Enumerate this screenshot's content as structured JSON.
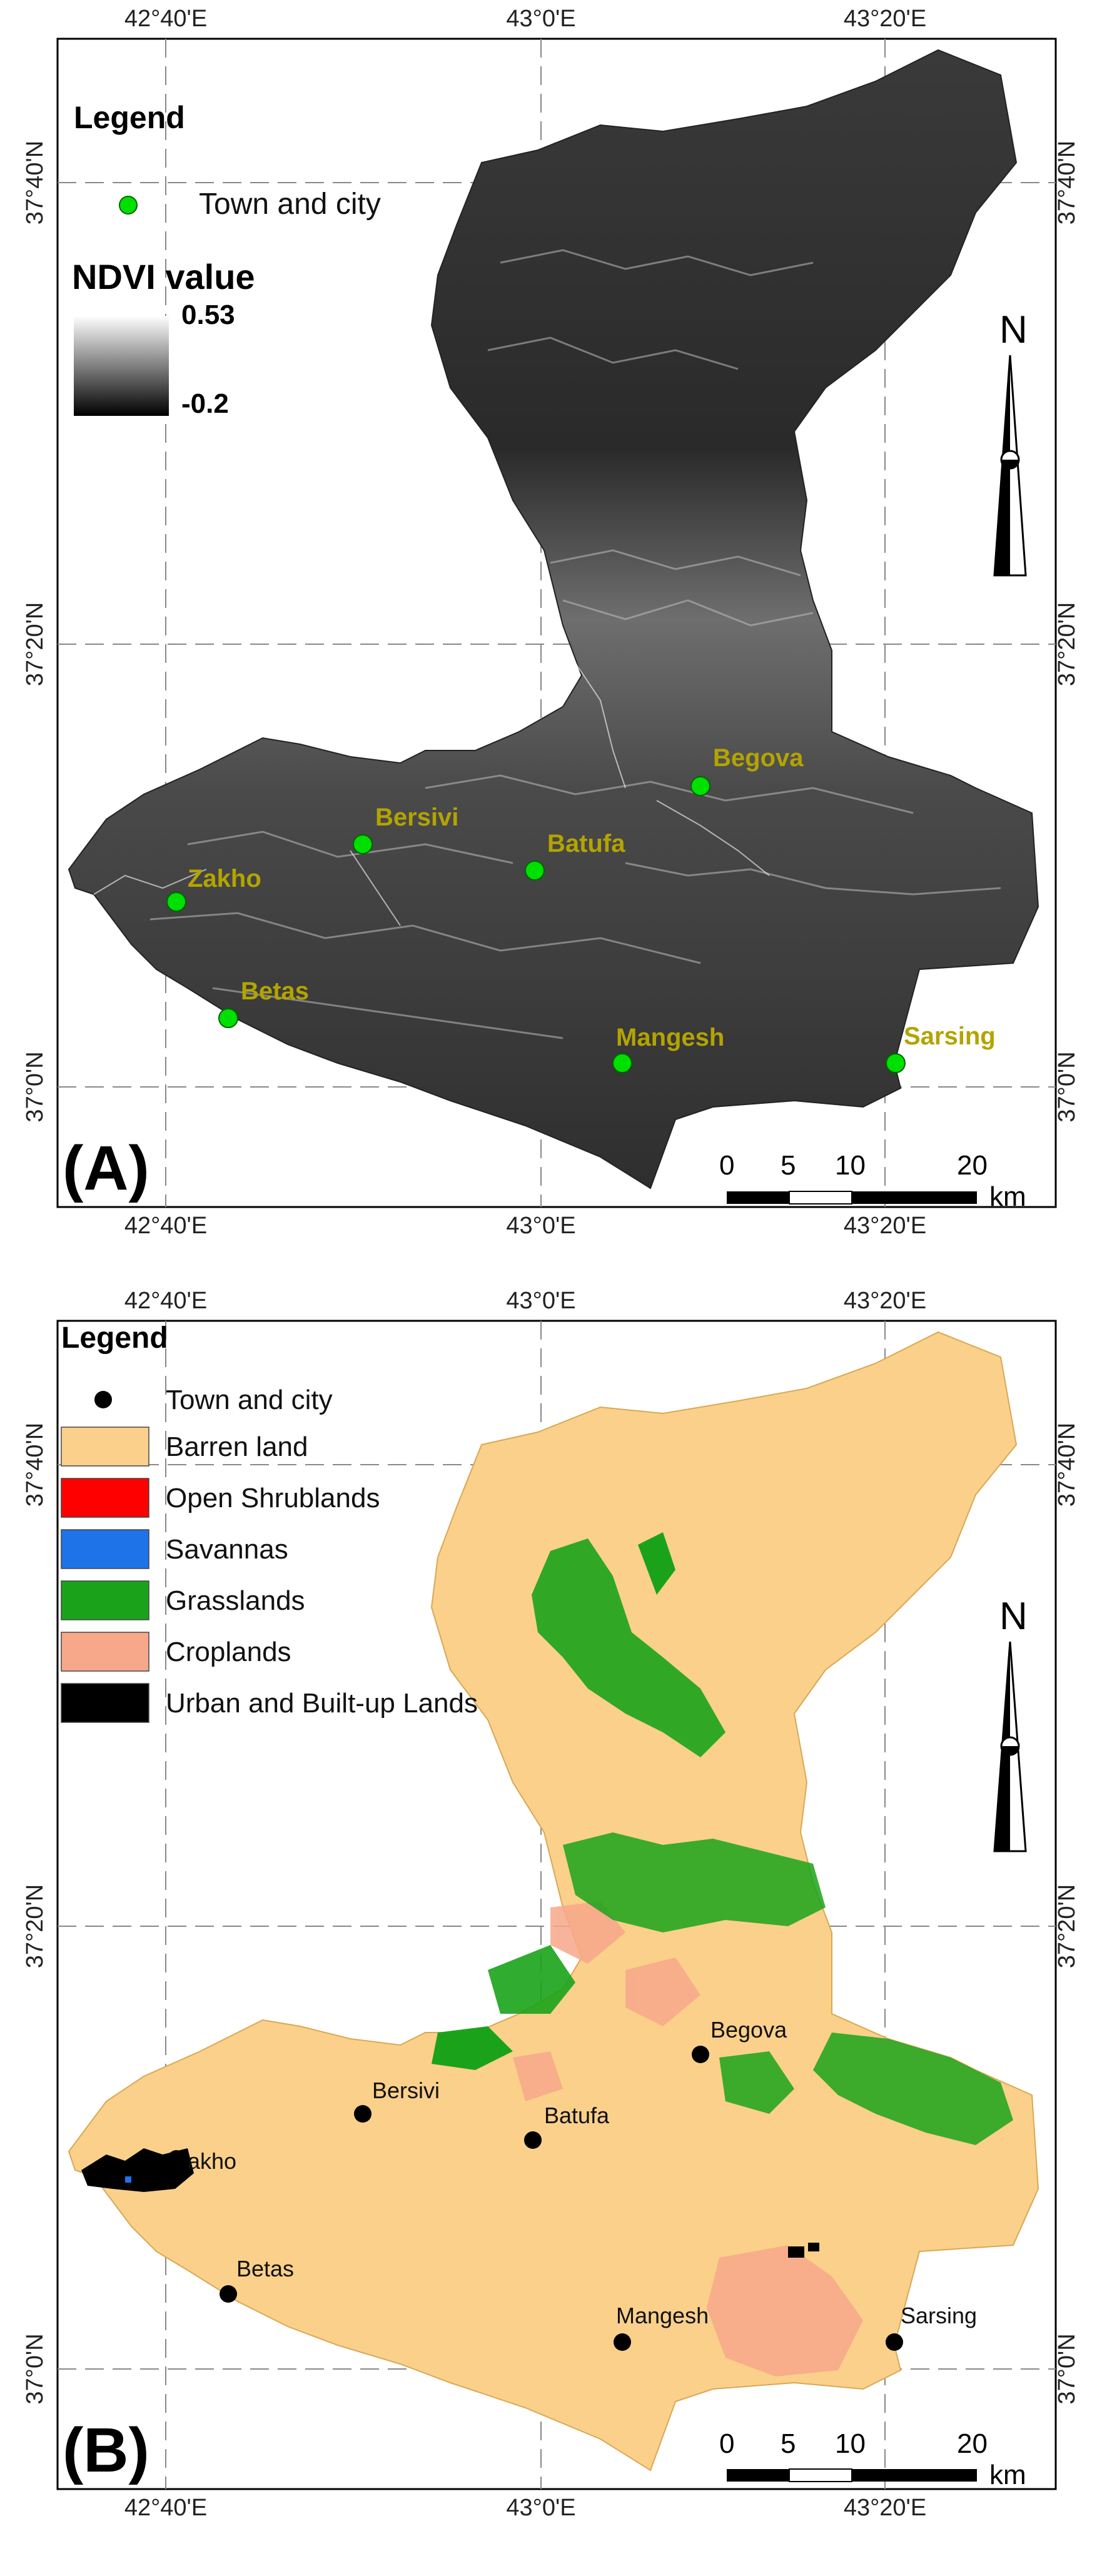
{
  "panels": [
    {
      "label": "(A)",
      "legend_title": "Legend",
      "town_legend": "Town and city",
      "ndvi_title": "NDVI value",
      "ndvi_max": "0.53",
      "ndvi_min": "-0.2",
      "north": "N",
      "scale_labels": [
        "0",
        "5",
        "10",
        "20",
        "km"
      ],
      "lon_ticks": [
        "42°40'E",
        "43°0'E",
        "43°20'E"
      ],
      "lat_ticks": [
        "37°40'N",
        "37°20'N",
        "37°0'N"
      ],
      "towns": [
        "Zakho",
        "Bersivi",
        "Batufa",
        "Begova",
        "Betas",
        "Mangesh",
        "Sarsing"
      ],
      "colors": {
        "town": "#00e000",
        "town_label": "#b3a400"
      }
    },
    {
      "label": "(B)",
      "legend_title": "Legend",
      "town_legend": "Town and city",
      "classes": [
        {
          "name": "Barren land",
          "color": "#fbd08a"
        },
        {
          "name": "Open Shrublands",
          "color": "#ff0000"
        },
        {
          "name": "Savannas",
          "color": "#1e73e8"
        },
        {
          "name": "Grasslands",
          "color": "#1aa31a"
        },
        {
          "name": "Croplands",
          "color": "#f7a88a"
        },
        {
          "name": "Urban and Built-up Lands",
          "color": "#000000"
        }
      ],
      "north": "N",
      "scale_labels": [
        "0",
        "5",
        "10",
        "20",
        "km"
      ],
      "lon_ticks": [
        "42°40'E",
        "43°0'E",
        "43°20'E"
      ],
      "lat_ticks": [
        "37°40'N",
        "37°20'N",
        "37°0'N"
      ],
      "towns": [
        "akho",
        "Bersivi",
        "Batufa",
        "Begova",
        "Betas",
        "Mangesh",
        "Sarsing"
      ],
      "colors": {
        "town": "#000000",
        "town_label": "#111111"
      }
    }
  ]
}
